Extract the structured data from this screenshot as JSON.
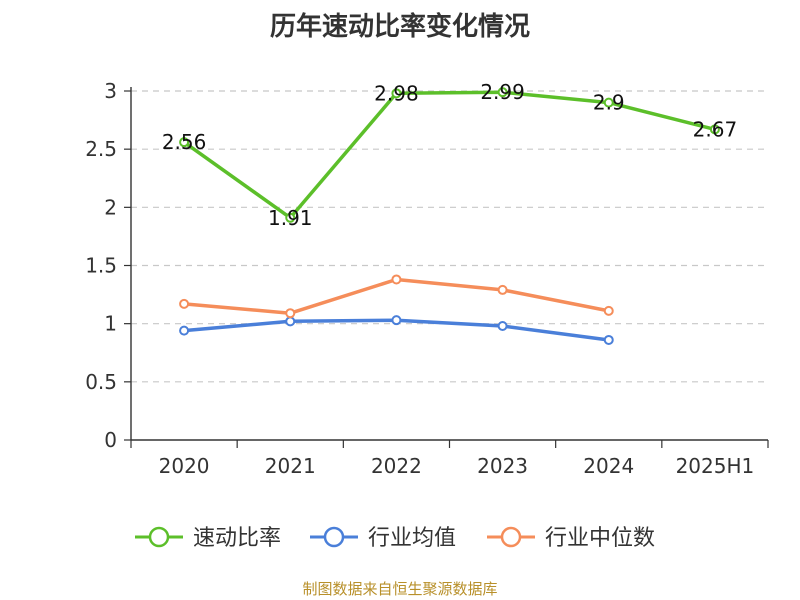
{
  "chart_data": {
    "type": "line",
    "title": "历年速动比率变化情况",
    "categories": [
      "2020",
      "2021",
      "2022",
      "2023",
      "2024",
      "2025H1"
    ],
    "ylim": [
      0,
      3
    ],
    "yticks": [
      "0",
      "0.5",
      "1",
      "1.5",
      "2",
      "2.5",
      "3"
    ],
    "grid": true,
    "legend_position": "bottom",
    "series": [
      {
        "name": "速动比率",
        "color": "#5cbf2a",
        "values": [
          2.56,
          1.91,
          2.98,
          2.99,
          2.9,
          2.67
        ],
        "labels": [
          "2.56",
          "1.91",
          "2.98",
          "2.99",
          "2.9",
          "2.67"
        ]
      },
      {
        "name": "行业均值",
        "color": "#4a7fd9",
        "values": [
          0.94,
          1.02,
          1.03,
          0.98,
          0.86,
          null
        ]
      },
      {
        "name": "行业中位数",
        "color": "#f58d5a",
        "values": [
          1.17,
          1.09,
          1.38,
          1.29,
          1.11,
          null
        ]
      }
    ]
  },
  "source": "制图数据来自恒生聚源数据库"
}
